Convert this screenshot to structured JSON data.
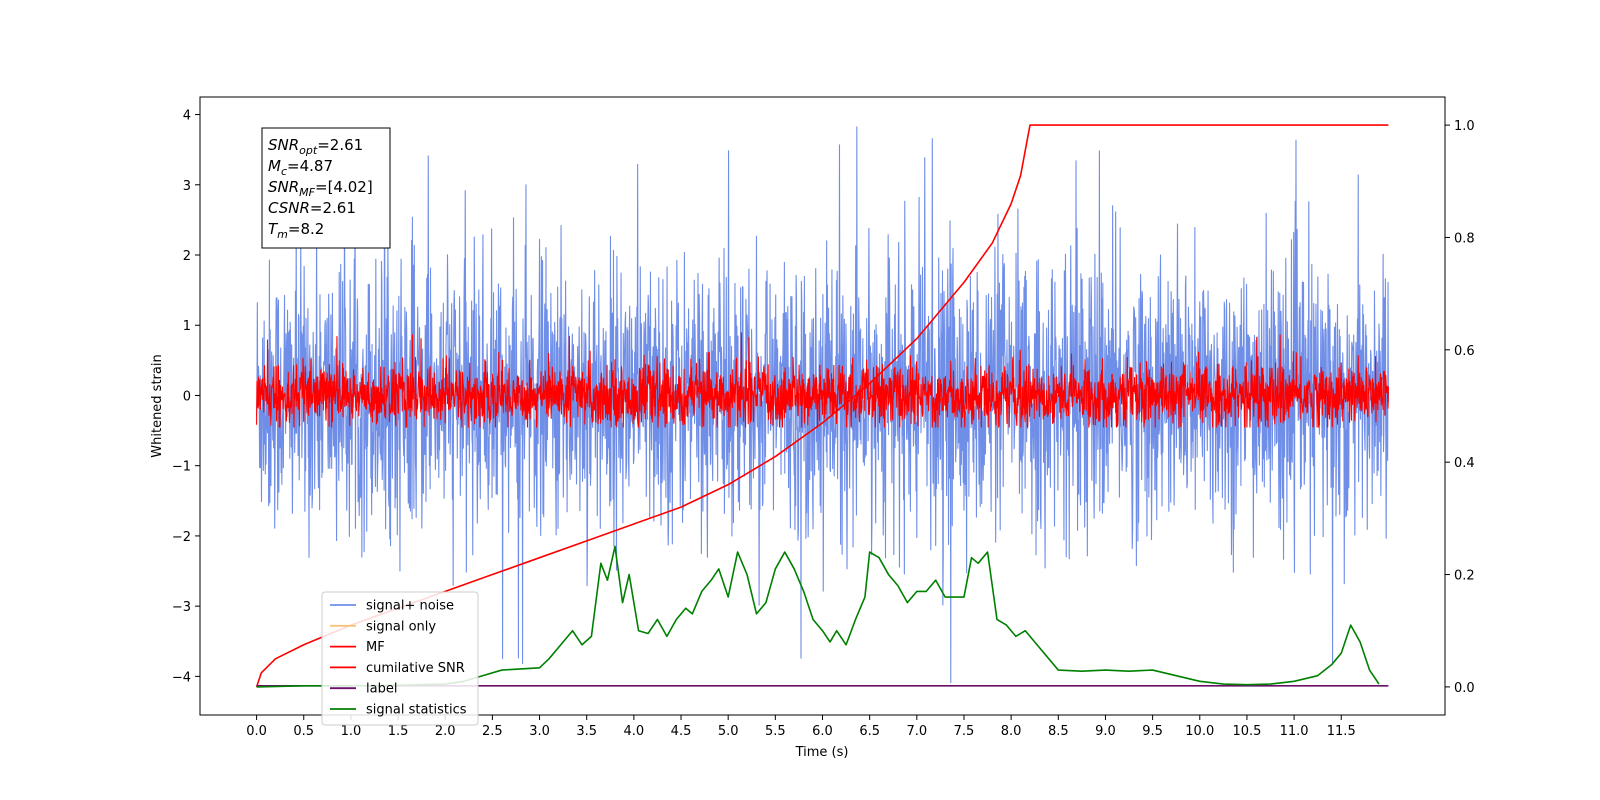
{
  "chart_data": {
    "type": "line",
    "xlabel": "Time (s)",
    "ylabel": "Whitened strain",
    "xlim": [
      -0.6,
      12.6
    ],
    "ylim_left": [
      -4.55,
      4.25
    ],
    "ylim_right": [
      -0.05,
      1.05
    ],
    "x_ticks": [
      0.0,
      0.5,
      1.0,
      1.5,
      2.0,
      2.5,
      3.0,
      3.5,
      4.0,
      4.5,
      5.0,
      5.5,
      6.0,
      6.5,
      7.0,
      7.5,
      8.0,
      8.5,
      9.0,
      9.5,
      10.0,
      10.5,
      11.0,
      11.5
    ],
    "x_tick_labels": [
      "0.0",
      "0.5",
      "1.0",
      "1.5",
      "2.0",
      "2.5",
      "3.0",
      "3.5",
      "4.0",
      "4.5",
      "5.0",
      "5.5",
      "6.0",
      "6.5",
      "7.0",
      "7.5",
      "8.0",
      "8.5",
      "9.0",
      "9.5",
      "10.0",
      "10.5",
      "11.0",
      "11.5"
    ],
    "y_left_ticks": [
      -4,
      -3,
      -2,
      -1,
      0,
      1,
      2,
      3,
      4
    ],
    "y_left_tick_labels": [
      "−4",
      "−3",
      "−2",
      "−1",
      "0",
      "1",
      "2",
      "3",
      "4"
    ],
    "y_right_ticks": [
      0.0,
      0.2,
      0.4,
      0.6,
      0.8,
      1.0
    ],
    "y_right_tick_labels": [
      "0.0",
      "0.2",
      "0.4",
      "0.6",
      "0.8",
      "1.0"
    ],
    "grid": false,
    "legend_position": "lower-left",
    "series": [
      {
        "name": "signal+ noise",
        "color": "#6f8ee8",
        "axis": "left",
        "kind": "noise",
        "x_range": [
          0.0,
          12.0
        ],
        "sigma": 0.95,
        "min": -4.1,
        "max": 3.85
      },
      {
        "name": "signal only",
        "color": "#f5c37a",
        "axis": "left",
        "kind": "hidden",
        "x": [
          0.0,
          12.0
        ],
        "y": [
          0.0,
          0.0
        ]
      },
      {
        "name": "MF",
        "color": "#ff0000",
        "axis": "left",
        "kind": "noise",
        "x_range": [
          0.0,
          12.0
        ],
        "sigma": 0.22,
        "min": -0.45,
        "max": 0.95
      },
      {
        "name": "cumilative SNR",
        "color": "#ff0000",
        "axis": "right",
        "kind": "line",
        "x": [
          0.0,
          0.05,
          0.2,
          0.5,
          1.0,
          1.5,
          2.0,
          2.5,
          3.0,
          3.5,
          4.0,
          4.5,
          5.0,
          5.5,
          6.0,
          6.5,
          7.0,
          7.5,
          7.8,
          8.0,
          8.1,
          8.2,
          12.0
        ],
        "y": [
          0.0,
          0.025,
          0.05,
          0.075,
          0.11,
          0.14,
          0.17,
          0.2,
          0.23,
          0.26,
          0.29,
          0.32,
          0.36,
          0.41,
          0.47,
          0.54,
          0.62,
          0.72,
          0.79,
          0.86,
          0.91,
          1.0,
          1.0
        ]
      },
      {
        "name": "label",
        "color": "#6b0f6b",
        "axis": "right",
        "kind": "line",
        "x": [
          0.0,
          12.0
        ],
        "y": [
          0.002,
          0.002
        ]
      },
      {
        "name": "signal statistics",
        "color": "#008000",
        "axis": "right",
        "kind": "line",
        "x": [
          0.0,
          0.5,
          1.0,
          1.5,
          2.0,
          2.2,
          2.4,
          2.6,
          2.8,
          3.0,
          3.1,
          3.25,
          3.35,
          3.45,
          3.55,
          3.65,
          3.72,
          3.8,
          3.88,
          3.95,
          4.05,
          4.15,
          4.25,
          4.35,
          4.45,
          4.55,
          4.62,
          4.72,
          4.82,
          4.9,
          5.0,
          5.1,
          5.2,
          5.3,
          5.4,
          5.5,
          5.6,
          5.7,
          5.8,
          5.9,
          6.0,
          6.08,
          6.15,
          6.25,
          6.35,
          6.45,
          6.5,
          6.6,
          6.7,
          6.8,
          6.9,
          7.0,
          7.1,
          7.2,
          7.3,
          7.4,
          7.5,
          7.58,
          7.65,
          7.75,
          7.85,
          7.95,
          8.05,
          8.15,
          8.25,
          8.5,
          8.75,
          9.0,
          9.25,
          9.5,
          9.75,
          10.0,
          10.25,
          10.5,
          10.75,
          11.0,
          11.25,
          11.4,
          11.5,
          11.6,
          11.7,
          11.8,
          11.9
        ],
        "y": [
          0.0,
          0.002,
          0.002,
          0.003,
          0.005,
          0.01,
          0.02,
          0.03,
          0.032,
          0.034,
          0.05,
          0.08,
          0.1,
          0.075,
          0.09,
          0.22,
          0.19,
          0.25,
          0.15,
          0.2,
          0.1,
          0.095,
          0.12,
          0.09,
          0.12,
          0.14,
          0.13,
          0.17,
          0.19,
          0.21,
          0.16,
          0.24,
          0.2,
          0.13,
          0.15,
          0.21,
          0.24,
          0.21,
          0.17,
          0.12,
          0.1,
          0.08,
          0.1,
          0.075,
          0.12,
          0.16,
          0.24,
          0.23,
          0.2,
          0.18,
          0.15,
          0.17,
          0.17,
          0.19,
          0.16,
          0.16,
          0.16,
          0.23,
          0.22,
          0.24,
          0.12,
          0.11,
          0.09,
          0.1,
          0.08,
          0.03,
          0.028,
          0.03,
          0.028,
          0.03,
          0.02,
          0.01,
          0.005,
          0.004,
          0.005,
          0.01,
          0.02,
          0.04,
          0.06,
          0.11,
          0.08,
          0.03,
          0.005
        ]
      }
    ],
    "annotation_lines": [
      {
        "base": "SNR",
        "sub": "opt",
        "value": "=2.61"
      },
      {
        "base": "M",
        "sub": "c",
        "value": "=4.87"
      },
      {
        "base": "SNR",
        "sub": "MF",
        "value": "=[4.02]"
      },
      {
        "base": "CSNR",
        "sub": "",
        "value": "=2.61"
      },
      {
        "base": "T",
        "sub": "m",
        "value": "=8.2"
      }
    ]
  }
}
